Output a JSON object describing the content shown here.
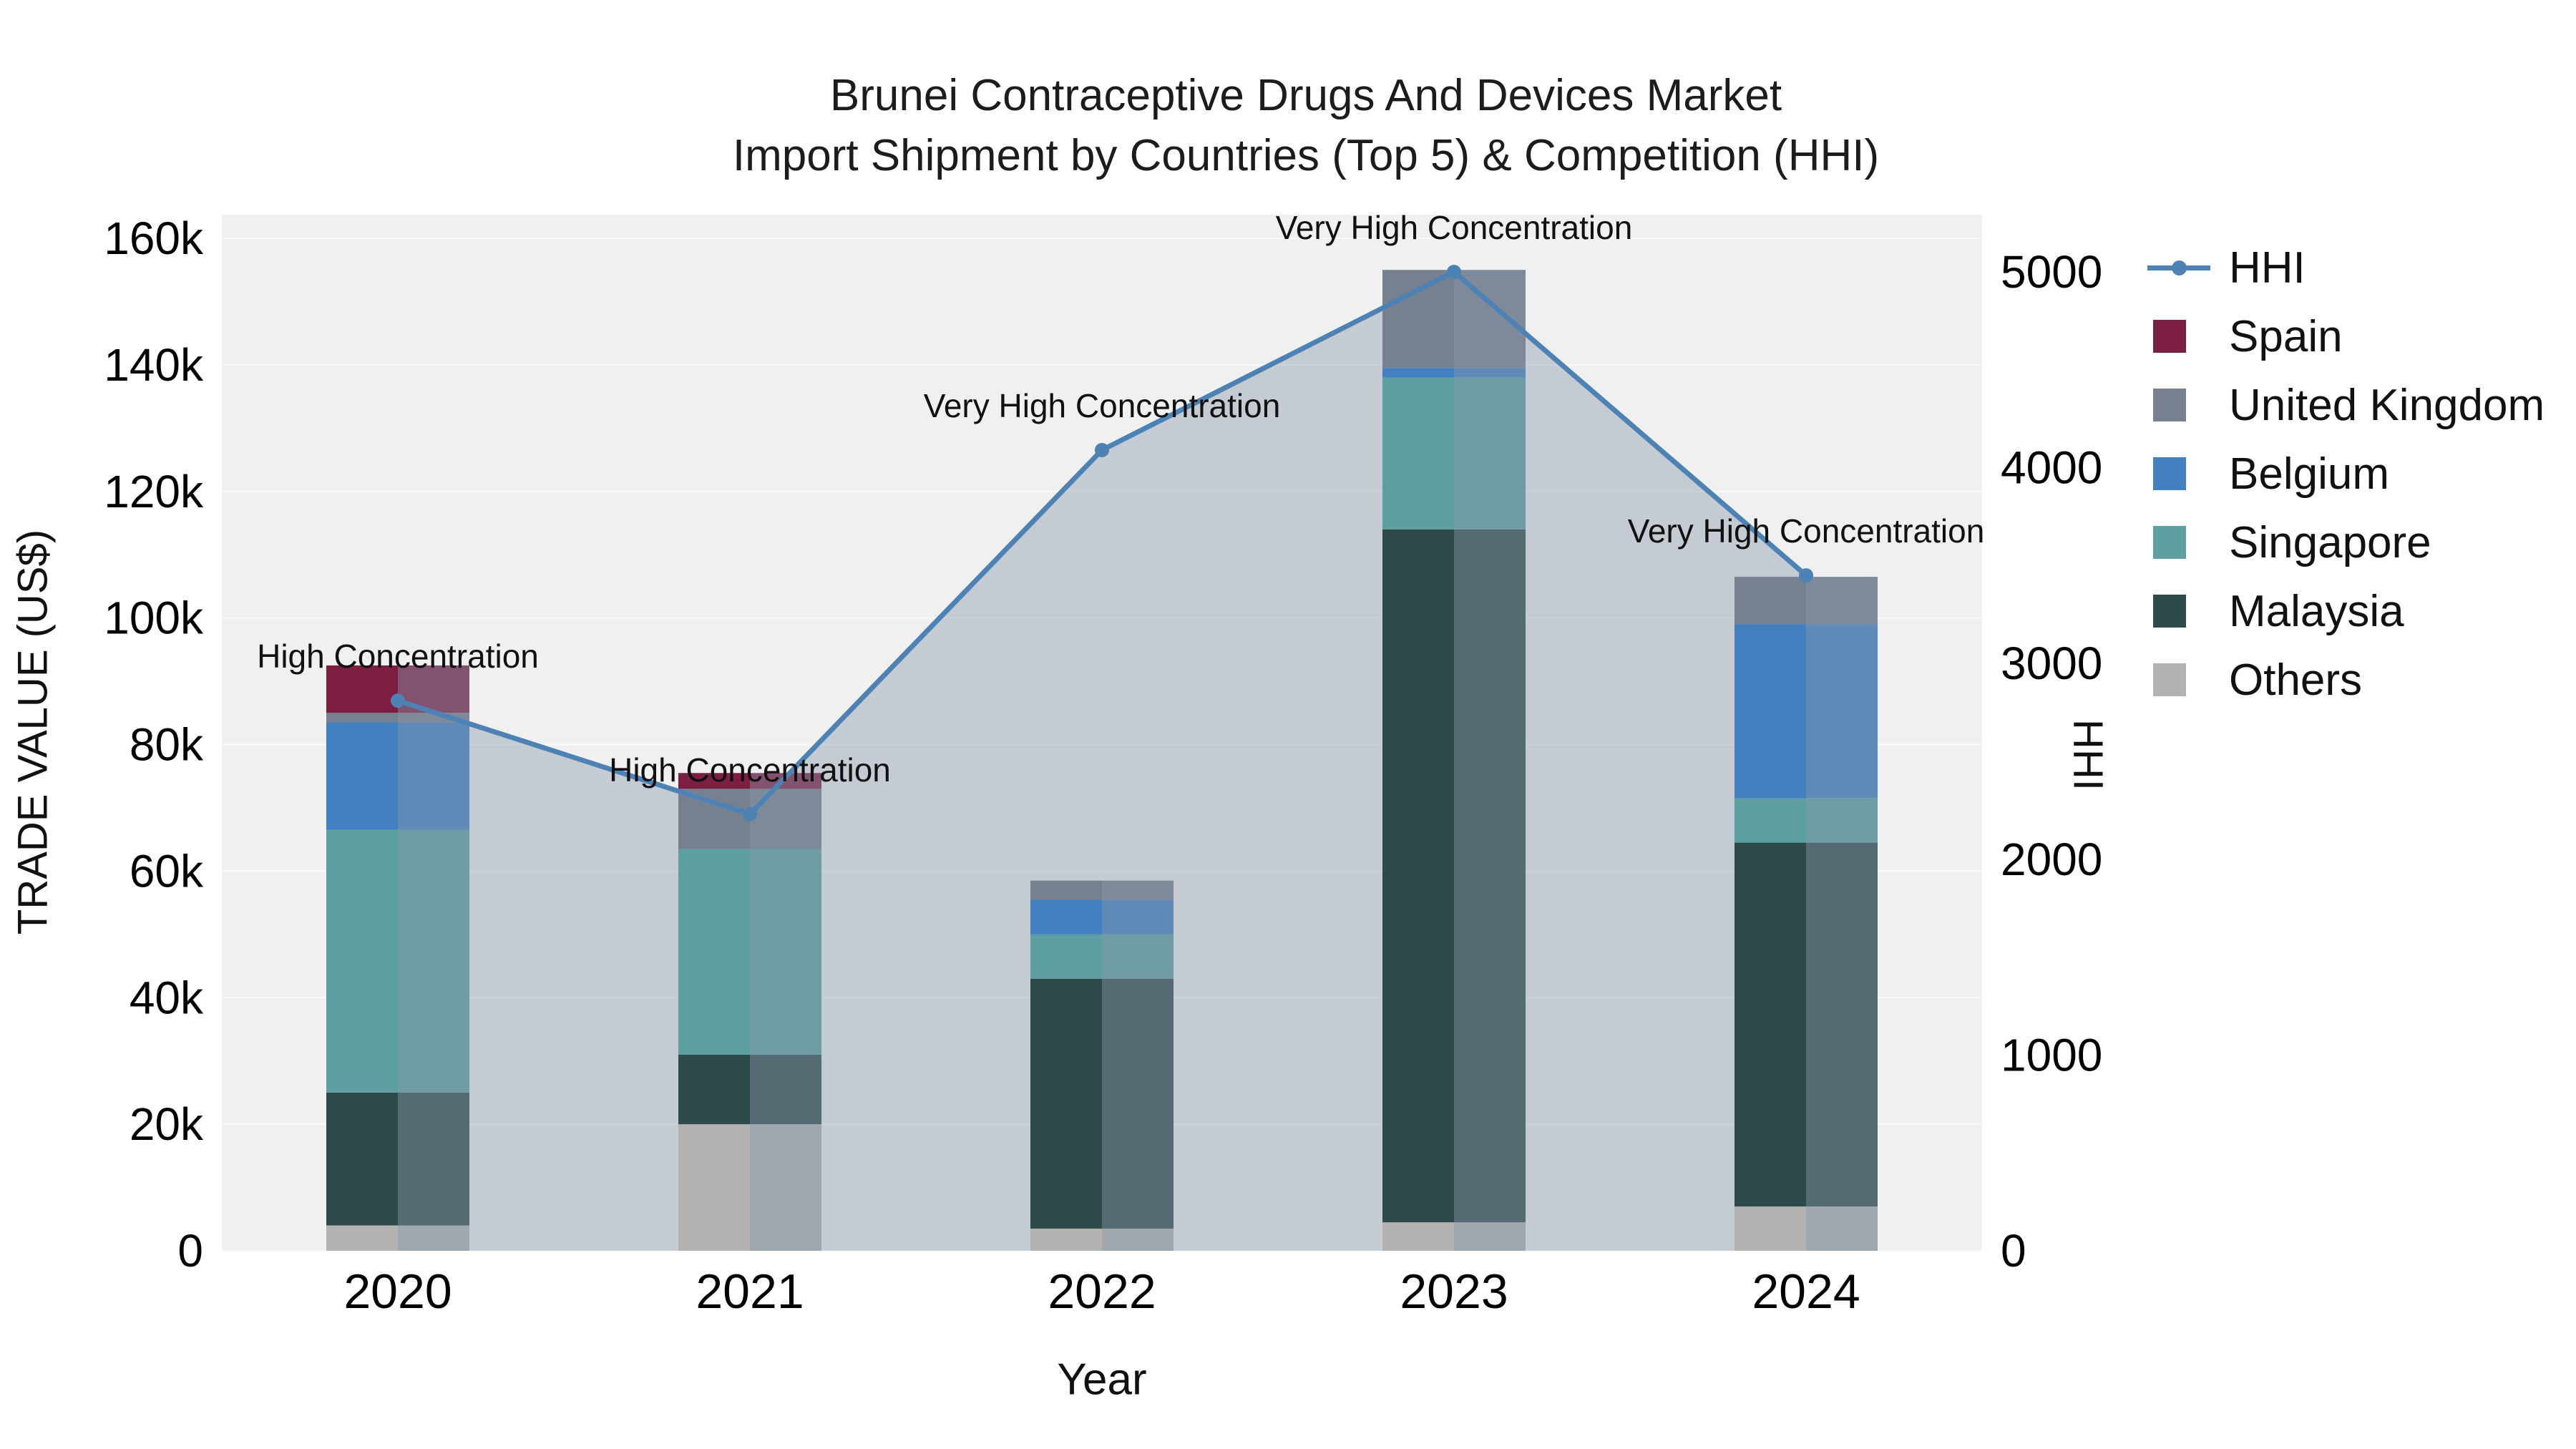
{
  "title": {
    "line1": "Brunei Contraceptive Drugs And Devices Market",
    "line2": "Import Shipment by Countries (Top 5) & Competition (HHI)"
  },
  "chart_data": {
    "type": "bar",
    "variant": "stacked-bar-with-hhi-line-and-area",
    "title": "Brunei Contraceptive Drugs And Devices Market Import Shipment by Countries (Top 5) & Competition (HHI)",
    "xlabel": "Year",
    "ylabel_left": "TRADE VALUE (US$)",
    "ylabel_right": "HHI",
    "categories": [
      "2020",
      "2021",
      "2022",
      "2023",
      "2024"
    ],
    "ylim_left": [
      0,
      160000
    ],
    "ylim_right": [
      0,
      5000
    ],
    "plot_bg": "#f0f0f1",
    "grid_color": "#fafafa",
    "yticks_left": [
      {
        "label": "0",
        "value": 0
      },
      {
        "label": "20k",
        "value": 20000
      },
      {
        "label": "40k",
        "value": 40000
      },
      {
        "label": "60k",
        "value": 60000
      },
      {
        "label": "80k",
        "value": 80000
      },
      {
        "label": "100k",
        "value": 100000
      },
      {
        "label": "120k",
        "value": 120000
      },
      {
        "label": "140k",
        "value": 140000
      },
      {
        "label": "160k",
        "value": 160000
      }
    ],
    "yticks_right": [
      {
        "label": "0",
        "value": 0
      },
      {
        "label": "1000",
        "value": 1000
      },
      {
        "label": "2000",
        "value": 2000
      },
      {
        "label": "3000",
        "value": 3000
      },
      {
        "label": "4000",
        "value": 4000
      },
      {
        "label": "5000",
        "value": 5000
      }
    ],
    "stack_order": "bottom-to-top",
    "series": [
      {
        "name": "Others",
        "color": "#b3b2b1",
        "values": [
          4000,
          20000,
          3500,
          4500,
          7000
        ]
      },
      {
        "name": "Malaysia",
        "color": "#2e4b4b",
        "values": [
          21000,
          11000,
          39500,
          109500,
          57500
        ]
      },
      {
        "name": "Singapore",
        "color": "#5f9fa1",
        "values": [
          41500,
          32500,
          7000,
          24000,
          7000
        ]
      },
      {
        "name": "Belgium",
        "color": "#4380c0",
        "values": [
          17000,
          0,
          5500,
          1500,
          27500
        ]
      },
      {
        "name": "United Kingdom",
        "color": "#76808f",
        "values": [
          1500,
          9500,
          3000,
          15500,
          7500
        ]
      },
      {
        "name": "Spain",
        "color": "#7d1f42",
        "values": [
          7500,
          2500,
          0,
          0,
          0
        ]
      }
    ],
    "hhi": {
      "name": "HHI",
      "color": "#4d82b5",
      "area_fill": "rgba(136,152,170,0.42)",
      "values": [
        2810,
        2230,
        4090,
        5000,
        3450
      ]
    },
    "annotations": [
      "High Concentration",
      "High Concentration",
      "Very High Concentration",
      "Very High Concentration",
      "Very High Concentration"
    ],
    "legend": [
      {
        "label": "HHI",
        "type": "line",
        "color": "#4d82b5"
      },
      {
        "label": "Spain",
        "type": "square",
        "color": "#7d1f42"
      },
      {
        "label": "United Kingdom",
        "type": "square",
        "color": "#76808f"
      },
      {
        "label": "Belgium",
        "type": "square",
        "color": "#4380c0"
      },
      {
        "label": "Singapore",
        "type": "square",
        "color": "#5f9fa1"
      },
      {
        "label": "Malaysia",
        "type": "square",
        "color": "#2e4b4b"
      },
      {
        "label": "Others",
        "type": "square",
        "color": "#b3b2b1"
      }
    ]
  }
}
